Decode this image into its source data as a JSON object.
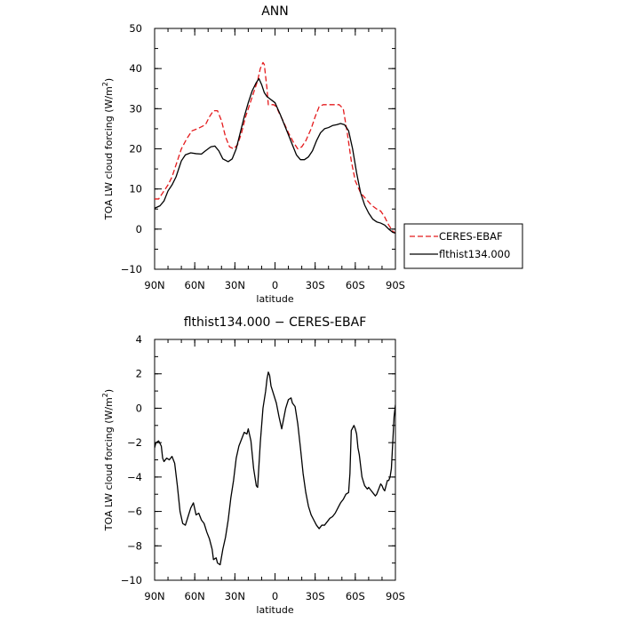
{
  "chart_data": [
    {
      "type": "line",
      "title": "ANN",
      "xlabel": "latitude",
      "ylabel": "TOA LW cloud forcing (W/m²)",
      "ylabel_text": "TOA LW cloud forcing (W/m",
      "ylabel_sup": "2",
      "ylabel_close": ")",
      "xlim": [
        -90,
        90
      ],
      "ylim": [
        -10,
        50
      ],
      "xticks": [
        -90,
        -60,
        -30,
        0,
        30,
        60,
        90
      ],
      "xtick_labels": [
        "90N",
        "60N",
        "30N",
        "0",
        "30S",
        "60S",
        "90S"
      ],
      "yticks": [
        -10,
        0,
        10,
        20,
        30,
        40,
        50
      ],
      "ytick_labels": [
        "−10",
        "0",
        "10",
        "20",
        "30",
        "40",
        "50"
      ],
      "grid": false,
      "legend_position": "right",
      "series": [
        {
          "name": "CERES-EBAF",
          "color": "#e41a1c",
          "dash": "dashed",
          "points": [
            [
              -90,
              7.5
            ],
            [
              -87,
              7.5
            ],
            [
              -84,
              9
            ],
            [
              -80,
              11
            ],
            [
              -77,
              13
            ],
            [
              -74,
              16
            ],
            [
              -70,
              20
            ],
            [
              -66,
              22.5
            ],
            [
              -62,
              24.5
            ],
            [
              -58,
              25
            ],
            [
              -55,
              25.5
            ],
            [
              -52,
              26
            ],
            [
              -49,
              28
            ],
            [
              -46,
              29.5
            ],
            [
              -43,
              29.5
            ],
            [
              -40,
              27
            ],
            [
              -37,
              23
            ],
            [
              -34,
              20.5
            ],
            [
              -31,
              20
            ],
            [
              -28,
              21
            ],
            [
              -25,
              24
            ],
            [
              -22,
              28
            ],
            [
              -19,
              31
            ],
            [
              -16,
              34
            ],
            [
              -13,
              37
            ],
            [
              -11,
              40
            ],
            [
              -9,
              41.5
            ],
            [
              -8,
              41
            ],
            [
              -7,
              38
            ],
            [
              -6,
              35
            ],
            [
              -5,
              31
            ],
            [
              -3,
              31
            ],
            [
              -1,
              31
            ],
            [
              1,
              30.5
            ],
            [
              3,
              29
            ],
            [
              6,
              27
            ],
            [
              10,
              24
            ],
            [
              14,
              21.5
            ],
            [
              17,
              20
            ],
            [
              20,
              20.5
            ],
            [
              23,
              22
            ],
            [
              27,
              25
            ],
            [
              30,
              28
            ],
            [
              33,
              30.5
            ],
            [
              36,
              31
            ],
            [
              40,
              31
            ],
            [
              44,
              31
            ],
            [
              48,
              31
            ],
            [
              51,
              30
            ],
            [
              54,
              24
            ],
            [
              57,
              17
            ],
            [
              60,
              12
            ],
            [
              64,
              9
            ],
            [
              68,
              7.5
            ],
            [
              72,
              6
            ],
            [
              76,
              5
            ],
            [
              79,
              4.5
            ],
            [
              82,
              3
            ],
            [
              85,
              1
            ],
            [
              88,
              -0.5
            ],
            [
              90,
              -1
            ]
          ]
        },
        {
          "name": "flthist134.000",
          "color": "#000000",
          "dash": "solid",
          "points": [
            [
              -90,
              5.2
            ],
            [
              -86,
              5.8
            ],
            [
              -83,
              7
            ],
            [
              -80,
              9.5
            ],
            [
              -77,
              11
            ],
            [
              -74,
              13
            ],
            [
              -70,
              17
            ],
            [
              -67,
              18.5
            ],
            [
              -63,
              19
            ],
            [
              -59,
              18.8
            ],
            [
              -55,
              18.7
            ],
            [
              -52,
              19.5
            ],
            [
              -48,
              20.5
            ],
            [
              -45,
              20.7
            ],
            [
              -42,
              19.5
            ],
            [
              -39,
              17.5
            ],
            [
              -35,
              16.8
            ],
            [
              -32,
              17.5
            ],
            [
              -29,
              20
            ],
            [
              -26,
              24
            ],
            [
              -23,
              28
            ],
            [
              -20,
              31.5
            ],
            [
              -17,
              34.5
            ],
            [
              -14,
              36.5
            ],
            [
              -12,
              37.5
            ],
            [
              -10,
              36
            ],
            [
              -8,
              34
            ],
            [
              -6,
              33
            ],
            [
              -4,
              32.5
            ],
            [
              -2,
              32
            ],
            [
              0,
              31.5
            ],
            [
              2,
              30
            ],
            [
              4,
              28.5
            ],
            [
              7,
              26
            ],
            [
              10,
              23.5
            ],
            [
              13,
              21
            ],
            [
              16,
              18.5
            ],
            [
              19,
              17.3
            ],
            [
              22,
              17.3
            ],
            [
              25,
              18
            ],
            [
              28,
              19.5
            ],
            [
              31,
              22
            ],
            [
              34,
              24
            ],
            [
              37,
              25
            ],
            [
              40,
              25.3
            ],
            [
              43,
              25.8
            ],
            [
              46,
              26
            ],
            [
              49,
              26.3
            ],
            [
              52,
              26
            ],
            [
              55,
              24.5
            ],
            [
              58,
              20
            ],
            [
              61,
              14
            ],
            [
              64,
              9
            ],
            [
              67,
              6
            ],
            [
              70,
              4
            ],
            [
              73,
              2.5
            ],
            [
              76,
              1.8
            ],
            [
              79,
              1.5
            ],
            [
              82,
              1
            ],
            [
              85,
              0
            ],
            [
              88,
              -0.8
            ],
            [
              90,
              -1
            ]
          ]
        }
      ]
    },
    {
      "type": "line",
      "title": "flthist134.000 − CERES-EBAF",
      "xlabel": "latitude",
      "ylabel": "TOA LW cloud forcing (W/m²)",
      "ylabel_text": "TOA LW cloud forcing (W/m",
      "ylabel_sup": "2",
      "ylabel_close": ")",
      "xlim": [
        -90,
        90
      ],
      "ylim": [
        -10,
        4
      ],
      "xticks": [
        -90,
        -60,
        -30,
        0,
        30,
        60,
        90
      ],
      "xtick_labels": [
        "90N",
        "60N",
        "30N",
        "0",
        "30S",
        "60S",
        "90S"
      ],
      "yticks": [
        -10,
        -8,
        -6,
        -4,
        -2,
        0,
        2,
        4
      ],
      "ytick_labels": [
        "−10",
        "−8",
        "−6",
        "−4",
        "−2",
        "0",
        "2",
        "4"
      ],
      "grid": false,
      "series": [
        {
          "color": "#000000",
          "dash": "solid",
          "points": [
            [
              -90,
              -2.3
            ],
            [
              -89,
              -2
            ],
            [
              -87,
              -1.9
            ],
            [
              -85,
              -2.2
            ],
            [
              -84,
              -2.9
            ],
            [
              -83,
              -3.1
            ],
            [
              -81,
              -2.9
            ],
            [
              -79,
              -3
            ],
            [
              -77,
              -2.8
            ],
            [
              -75,
              -3.2
            ],
            [
              -73,
              -4.5
            ],
            [
              -71,
              -6
            ],
            [
              -69,
              -6.7
            ],
            [
              -67,
              -6.8
            ],
            [
              -65,
              -6.3
            ],
            [
              -63,
              -5.8
            ],
            [
              -61,
              -5.5
            ],
            [
              -59,
              -6.2
            ],
            [
              -57,
              -6.1
            ],
            [
              -55,
              -6.5
            ],
            [
              -53,
              -6.7
            ],
            [
              -51,
              -7.2
            ],
            [
              -49,
              -7.6
            ],
            [
              -47,
              -8.2
            ],
            [
              -46,
              -8.8
            ],
            [
              -44,
              -8.7
            ],
            [
              -43,
              -9
            ],
            [
              -41,
              -9.1
            ],
            [
              -39,
              -8.2
            ],
            [
              -37,
              -7.5
            ],
            [
              -35,
              -6.5
            ],
            [
              -33,
              -5.2
            ],
            [
              -31,
              -4.2
            ],
            [
              -29,
              -2.9
            ],
            [
              -27,
              -2.2
            ],
            [
              -25,
              -1.8
            ],
            [
              -23,
              -1.4
            ],
            [
              -21,
              -1.5
            ],
            [
              -20,
              -1.2
            ],
            [
              -18,
              -1.9
            ],
            [
              -16,
              -3.5
            ],
            [
              -14,
              -4.5
            ],
            [
              -13,
              -4.6
            ],
            [
              -11,
              -2
            ],
            [
              -9,
              0
            ],
            [
              -7,
              1
            ],
            [
              -6,
              1.7
            ],
            [
              -5,
              2.1
            ],
            [
              -4,
              1.9
            ],
            [
              -3,
              1.3
            ],
            [
              -1,
              0.8
            ],
            [
              1,
              0.3
            ],
            [
              3,
              -0.5
            ],
            [
              5,
              -1.2
            ],
            [
              6,
              -0.8
            ],
            [
              8,
              0
            ],
            [
              10,
              0.5
            ],
            [
              12,
              0.6
            ],
            [
              13,
              0.3
            ],
            [
              15,
              0.1
            ],
            [
              17,
              -0.9
            ],
            [
              19,
              -2.3
            ],
            [
              21,
              -3.8
            ],
            [
              23,
              -4.9
            ],
            [
              25,
              -5.7
            ],
            [
              27,
              -6.2
            ],
            [
              29,
              -6.5
            ],
            [
              31,
              -6.8
            ],
            [
              33,
              -7
            ],
            [
              35,
              -6.8
            ],
            [
              37,
              -6.8
            ],
            [
              39,
              -6.6
            ],
            [
              41,
              -6.4
            ],
            [
              43,
              -6.3
            ],
            [
              45,
              -6.1
            ],
            [
              47,
              -5.8
            ],
            [
              49,
              -5.5
            ],
            [
              51,
              -5.3
            ],
            [
              53,
              -5
            ],
            [
              55,
              -4.9
            ],
            [
              56,
              -3.8
            ],
            [
              57,
              -1.3
            ],
            [
              59,
              -1
            ],
            [
              60,
              -1.2
            ],
            [
              61,
              -1.5
            ],
            [
              62,
              -2.3
            ],
            [
              63,
              -2.7
            ],
            [
              65,
              -4
            ],
            [
              67,
              -4.5
            ],
            [
              69,
              -4.7
            ],
            [
              70,
              -4.6
            ],
            [
              72,
              -4.8
            ],
            [
              74,
              -5
            ],
            [
              75,
              -5.1
            ],
            [
              76,
              -5
            ],
            [
              78,
              -4.6
            ],
            [
              79,
              -4.4
            ],
            [
              80,
              -4.5
            ],
            [
              81,
              -4.7
            ],
            [
              82,
              -4.8
            ],
            [
              84,
              -4.2
            ],
            [
              85,
              -4.2
            ],
            [
              86,
              -4
            ],
            [
              87,
              -3.5
            ],
            [
              88,
              -2
            ],
            [
              89,
              -0.5
            ],
            [
              90,
              0.2
            ]
          ]
        }
      ]
    }
  ]
}
